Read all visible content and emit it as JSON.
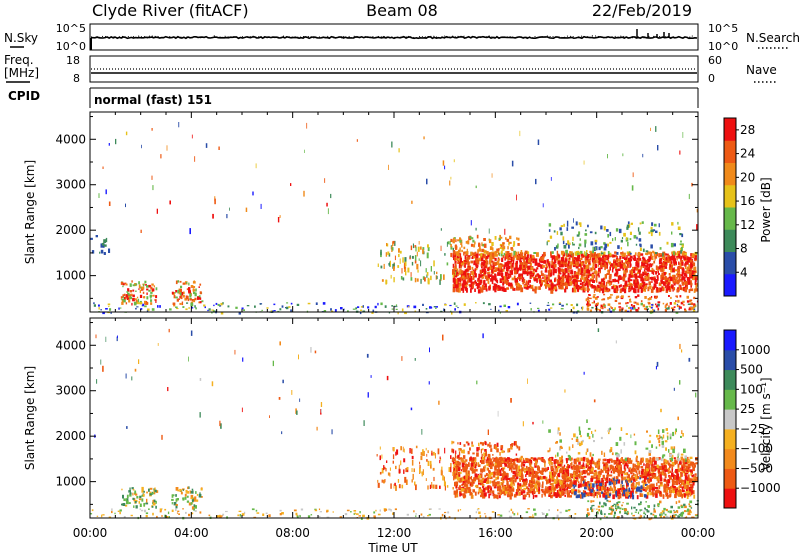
{
  "header": {
    "station_title": "Clyde River (fitACF)",
    "beam_title": "Beam 08",
    "date_title": "22/Feb/2019"
  },
  "status_panels": {
    "noise": {
      "left_label": "N.Sky",
      "left_ticks": [
        "10^5",
        "10^0"
      ],
      "right_label": "N.Search",
      "right_ticks": [
        "10^5",
        "10^0"
      ]
    },
    "frequency": {
      "left_label_line1": "Freq.",
      "left_label_line2": "[MHz]",
      "left_ticks": [
        "18",
        "8"
      ],
      "right_label": "Nave",
      "right_ticks": [
        "60",
        "0"
      ]
    },
    "cpid": {
      "label": "CPID",
      "value": "normal (fast) 151"
    }
  },
  "colors": {
    "power_scale": [
      "#1a1aff",
      "#2a4da8",
      "#3d8a5a",
      "#66b84a",
      "#e6c21a",
      "#f08a1a",
      "#ee5a14",
      "#ee1010"
    ],
    "velocity_scale": [
      "#ee1010",
      "#ee5a14",
      "#f28a1c",
      "#f5b020",
      "#c8c8c8",
      "#66b84a",
      "#3d8a5a",
      "#2a4da8",
      "#1a1aff"
    ]
  },
  "chart_data": [
    {
      "type": "heatmap",
      "title": "",
      "xlabel": "",
      "ylabel": "Slant Range [km]",
      "x_ticks": [
        "00:00",
        "04:00",
        "08:00",
        "12:00",
        "16:00",
        "20:00",
        "00:00"
      ],
      "y_ticks": [
        "1000",
        "2000",
        "3000",
        "4000"
      ],
      "ylim": [
        200,
        4600
      ],
      "xlim_hours": [
        0,
        24
      ],
      "colorbar": {
        "label": "Power [dB]",
        "ticks": [
          "4",
          "8",
          "12",
          "16",
          "20",
          "24",
          "28"
        ],
        "range": [
          0,
          30
        ]
      }
    },
    {
      "type": "heatmap",
      "title": "",
      "xlabel": "Time UT",
      "ylabel": "Slant Range [km]",
      "x_ticks": [
        "00:00",
        "04:00",
        "08:00",
        "12:00",
        "16:00",
        "20:00",
        "00:00"
      ],
      "y_ticks": [
        "1000",
        "2000",
        "3000",
        "4000"
      ],
      "ylim": [
        200,
        4600
      ],
      "xlim_hours": [
        0,
        24
      ],
      "colorbar": {
        "label": "Velocity [m s⁻¹]",
        "ticks": [
          "1000",
          "500",
          "100",
          "25",
          "−25",
          "−100",
          "−500",
          "−1000"
        ],
        "range": [
          -1000,
          1000
        ]
      }
    }
  ]
}
